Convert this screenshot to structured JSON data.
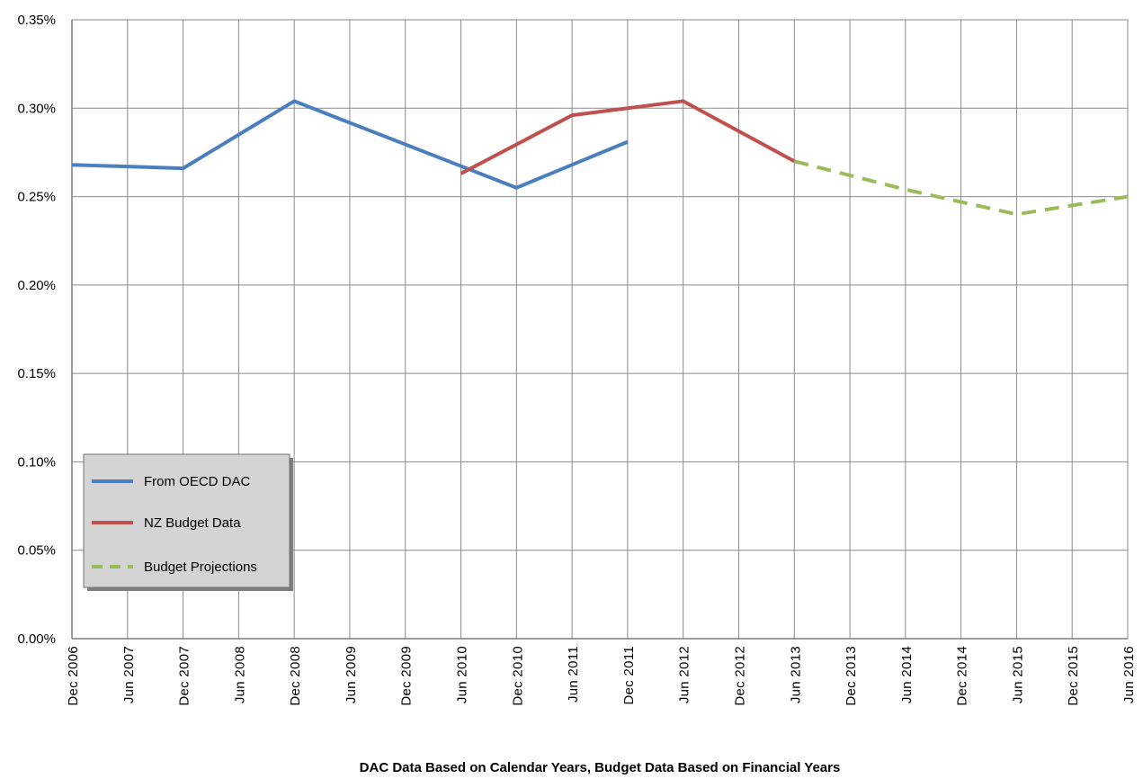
{
  "chart_data": {
    "type": "line",
    "categories": [
      "Dec 2006",
      "Jun 2007",
      "Dec 2007",
      "Jun 2008",
      "Dec 2008",
      "Jun 2009",
      "Dec 2009",
      "Jun 2010",
      "Dec 2010",
      "Jun 2011",
      "Dec 2011",
      "Jun 2012",
      "Dec 2012",
      "Jun 2013",
      "Dec 2013",
      "Jun 2014",
      "Dec 2014",
      "Jun 2015",
      "Dec 2015",
      "Jun 2016"
    ],
    "y_ticks": [
      "0.00%",
      "0.05%",
      "0.10%",
      "0.15%",
      "0.20%",
      "0.25%",
      "0.30%",
      "0.35%"
    ],
    "ylim": [
      0,
      0.35
    ],
    "xlabel": "DAC Data Based on Calendar Years, Budget Data Based on Financial Years",
    "grid": true,
    "legend_position": "lower-left",
    "series": [
      {
        "name": "From OECD DAC",
        "color": "#4a7ebf",
        "style": "solid",
        "points": [
          [
            "Dec 2006",
            0.268
          ],
          [
            "Dec 2007",
            0.266
          ],
          [
            "Dec 2008",
            0.304
          ],
          [
            "Dec 2010",
            0.255
          ],
          [
            "Dec 2011",
            0.281
          ]
        ]
      },
      {
        "name": "NZ Budget Data",
        "color": "#c0504d",
        "style": "solid",
        "points": [
          [
            "Jun 2010",
            0.263
          ],
          [
            "Jun 2011",
            0.296
          ],
          [
            "Jun 2012",
            0.304
          ],
          [
            "Jun 2013",
            0.27
          ]
        ]
      },
      {
        "name": "Budget Projections",
        "color": "#9bbb59",
        "style": "dashed",
        "points": [
          [
            "Jun 2013",
            0.27
          ],
          [
            "Jun 2014",
            0.254
          ],
          [
            "Jun 2015",
            0.24
          ],
          [
            "Jun 2016",
            0.25
          ]
        ]
      }
    ]
  }
}
